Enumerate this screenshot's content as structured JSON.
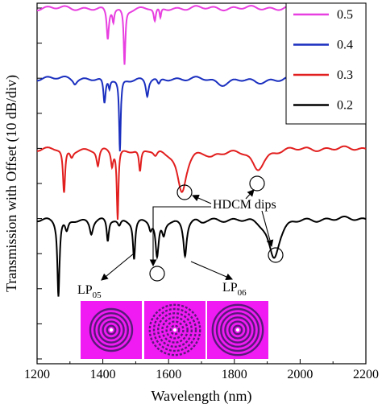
{
  "chart_data": {
    "type": "line",
    "xlabel": "Wavelength (nm)",
    "ylabel": "Transmission with Offset (10 dB/div)",
    "xlim": [
      1200,
      2200
    ],
    "xticks": [
      "1200",
      "1400",
      "1600",
      "1800",
      "2000",
      "2200"
    ],
    "y_divisions": 11,
    "legend_placement": "top-right",
    "series": [
      {
        "name": "0.5",
        "color": "#e83fe0",
        "offset_div": 0,
        "dips": [
          [
            1415,
            0.9,
            4
          ],
          [
            1432,
            0.35,
            3
          ],
          [
            1466,
            1.6,
            3
          ],
          [
            1558,
            0.4,
            4
          ],
          [
            1575,
            0.3,
            3
          ]
        ]
      },
      {
        "name": "0.4",
        "color": "#1a2fbf",
        "offset_div": 2,
        "dips": [
          [
            1315,
            0.12,
            6
          ],
          [
            1405,
            0.75,
            4
          ],
          [
            1420,
            0.25,
            3
          ],
          [
            1452,
            2.1,
            3
          ],
          [
            1535,
            0.5,
            5
          ],
          [
            1570,
            0.2,
            6
          ],
          [
            1760,
            0.15,
            25
          ],
          [
            1870,
            0.12,
            30
          ]
        ]
      },
      {
        "name": "0.3",
        "color": "#e21f1f",
        "offset_div": 4,
        "dips": [
          [
            1282,
            1.3,
            4
          ],
          [
            1305,
            0.2,
            6
          ],
          [
            1385,
            0.5,
            5
          ],
          [
            1428,
            0.45,
            4
          ],
          [
            1445,
            2.0,
            3
          ],
          [
            1513,
            0.65,
            4
          ],
          [
            1560,
            0.2,
            8
          ],
          [
            1640,
            1.2,
            17
          ],
          [
            1730,
            0.2,
            20
          ],
          [
            1870,
            0.6,
            24
          ]
        ]
      },
      {
        "name": "0.2",
        "color": "#000000",
        "offset_div": 6,
        "dips": [
          [
            1265,
            2.2,
            4
          ],
          [
            1290,
            0.35,
            6
          ],
          [
            1365,
            0.4,
            6
          ],
          [
            1415,
            0.65,
            4
          ],
          [
            1450,
            0.2,
            6
          ],
          [
            1495,
            1.1,
            4
          ],
          [
            1545,
            0.25,
            5
          ],
          [
            1565,
            1.1,
            6
          ],
          [
            1585,
            0.4,
            6
          ],
          [
            1650,
            1.0,
            6
          ],
          [
            1700,
            0.1,
            15
          ],
          [
            1920,
            1.1,
            20
          ]
        ]
      }
    ],
    "annotations": {
      "hdcm_label": "HDCM dips",
      "lp05_main": "LP",
      "lp05_sub": "05",
      "lp06_main": "LP",
      "lp06_sub": "06"
    }
  },
  "colors": {
    "mode_image_bg": "#f01bf2",
    "mode_ring": "#5a1a7a"
  }
}
